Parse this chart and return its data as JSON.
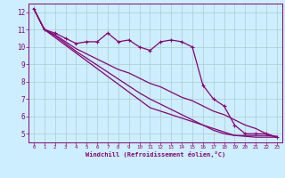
{
  "xlabel": "Windchill (Refroidissement éolien,°C)",
  "ylabel": "",
  "bg_color": "#cceeff",
  "grid_color": "#aacccc",
  "line_color": "#880077",
  "xlim": [
    -0.5,
    23.5
  ],
  "ylim": [
    4.5,
    12.5
  ],
  "xticks": [
    0,
    1,
    2,
    3,
    4,
    5,
    6,
    7,
    8,
    9,
    10,
    11,
    12,
    13,
    14,
    15,
    16,
    17,
    18,
    19,
    20,
    21,
    22,
    23
  ],
  "yticks": [
    5,
    6,
    7,
    8,
    9,
    10,
    11,
    12
  ],
  "x_data": [
    0,
    1,
    2,
    3,
    4,
    5,
    6,
    7,
    8,
    9,
    10,
    11,
    12,
    13,
    14,
    15,
    16,
    17,
    18,
    19,
    20,
    21,
    22,
    23
  ],
  "y_data_line1": [
    12.2,
    11.0,
    10.8,
    10.5,
    10.2,
    10.3,
    10.3,
    10.8,
    10.3,
    10.4,
    10.0,
    9.8,
    10.3,
    10.4,
    10.3,
    10.0,
    7.8,
    7.0,
    6.6,
    5.5,
    5.0,
    5.0,
    5.0,
    4.8
  ],
  "y_data_line2": [
    12.2,
    11.0,
    10.7,
    10.3,
    9.9,
    9.6,
    9.3,
    9.0,
    8.7,
    8.5,
    8.2,
    7.9,
    7.7,
    7.4,
    7.1,
    6.9,
    6.6,
    6.3,
    6.1,
    5.8,
    5.5,
    5.3,
    5.0,
    4.8
  ],
  "y_data_line3": [
    12.2,
    11.0,
    10.55,
    10.1,
    9.65,
    9.2,
    8.75,
    8.3,
    7.85,
    7.4,
    6.95,
    6.5,
    6.3,
    6.1,
    5.9,
    5.7,
    5.5,
    5.3,
    5.1,
    4.9,
    4.85,
    4.8,
    4.8,
    4.8
  ],
  "y_data_line4": [
    12.2,
    11.0,
    10.65,
    10.2,
    9.75,
    9.35,
    8.95,
    8.55,
    8.15,
    7.75,
    7.35,
    7.0,
    6.7,
    6.4,
    6.1,
    5.8,
    5.5,
    5.2,
    5.0,
    4.9,
    4.9,
    4.9,
    4.9,
    4.85
  ]
}
